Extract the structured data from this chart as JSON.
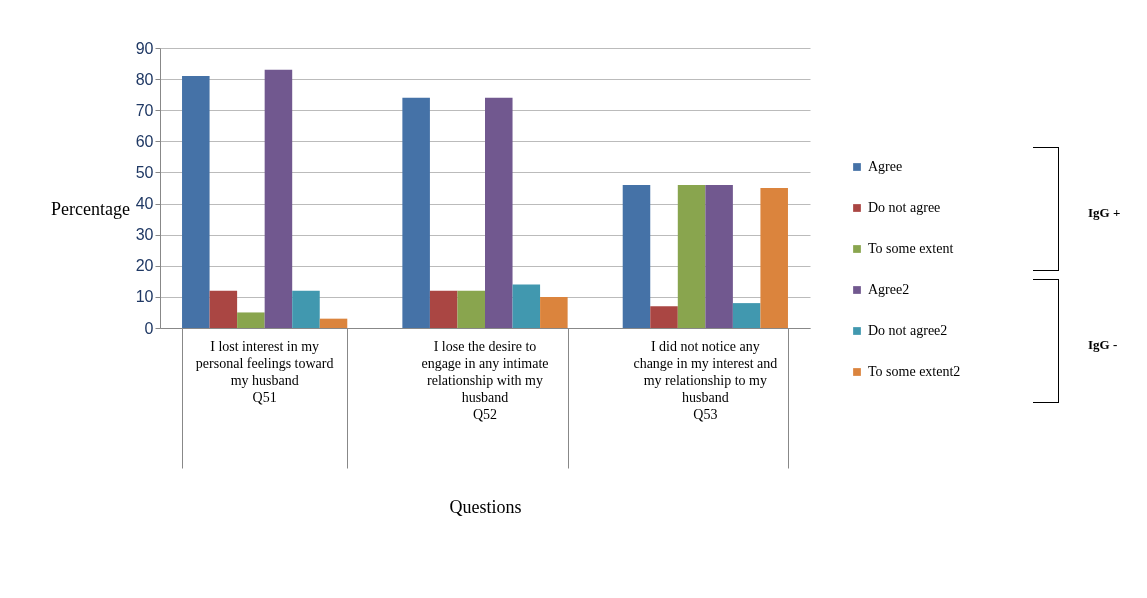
{
  "chart_data": {
    "type": "bar",
    "xlabel": "Questions",
    "ylabel": "Percentage",
    "categories": [
      "I lost interest in my personal feelings toward my husband\nQ51",
      "I lose the desire to engage in any intimate relationship with my husband\nQ52",
      "I did not notice any change in my interest and my relationship to my husband\nQ53"
    ],
    "series": [
      {
        "name": "Agree",
        "color": "#4572a7",
        "values": [
          81,
          74,
          46
        ]
      },
      {
        "name": "Do not agree",
        "color": "#aa4643",
        "values": [
          12,
          12,
          7
        ]
      },
      {
        "name": "To some extent",
        "color": "#89a54e",
        "values": [
          5,
          12,
          46
        ]
      },
      {
        "name": "Agree2",
        "color": "#71588f",
        "values": [
          83,
          74,
          46
        ]
      },
      {
        "name": "Do not agree2",
        "color": "#4198af",
        "values": [
          12,
          14,
          8
        ]
      },
      {
        "name": "To some extent2",
        "color": "#db843d",
        "values": [
          3,
          10,
          45
        ]
      }
    ],
    "ylim": [
      0,
      90
    ],
    "yticks": [
      0,
      10,
      20,
      30,
      40,
      50,
      60,
      70,
      80,
      90
    ],
    "grid": "y",
    "legend": "right",
    "annotations": [
      "IgG +",
      "IgG -"
    ]
  }
}
